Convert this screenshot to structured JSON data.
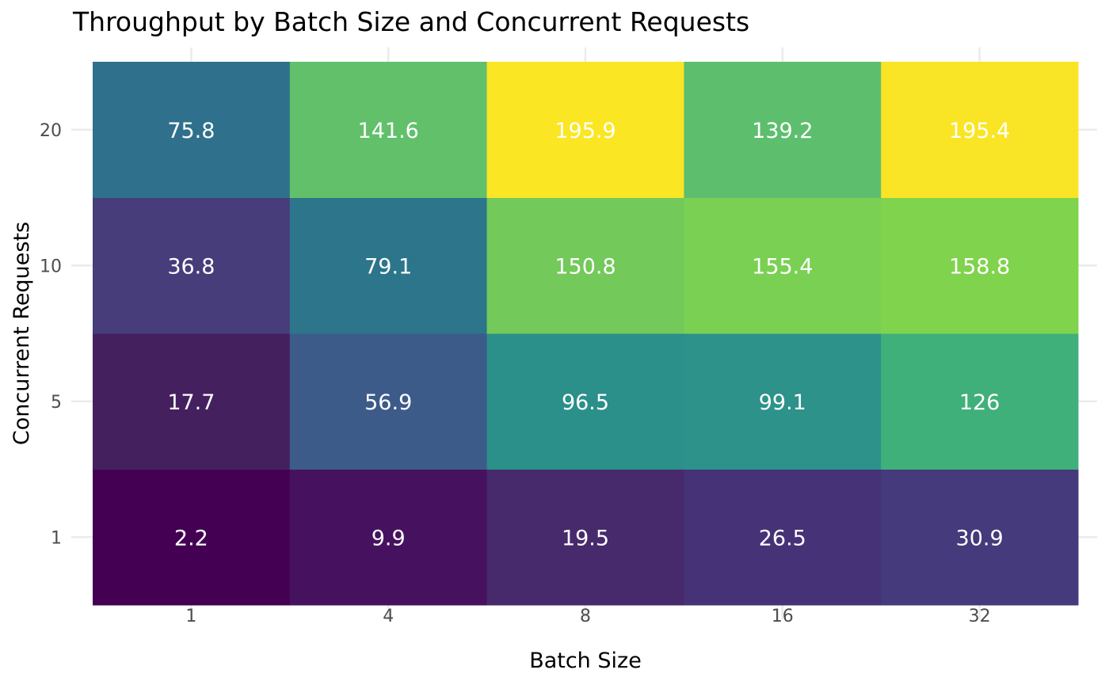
{
  "chart_data": {
    "type": "heatmap",
    "title": "Throughput by Batch Size and Concurrent Requests",
    "xlabel": "Batch Size",
    "ylabel": "Concurrent Requests",
    "x_categories": [
      "1",
      "4",
      "8",
      "16",
      "32"
    ],
    "y_categories": [
      "1",
      "5",
      "10",
      "20"
    ],
    "values": [
      [
        2.2,
        9.9,
        19.5,
        26.5,
        30.9
      ],
      [
        17.7,
        56.9,
        96.5,
        99.1,
        126
      ],
      [
        36.8,
        79.1,
        150.8,
        155.4,
        158.8
      ],
      [
        75.8,
        141.6,
        195.9,
        139.2,
        195.4
      ]
    ],
    "value_range": [
      2.2,
      195.9
    ],
    "colormap": "viridis",
    "cell_colors": [
      [
        "#440154",
        "#46125f",
        "#472a6c",
        "#463276",
        "#453a7b"
      ],
      [
        "#45205f",
        "#3d5b89",
        "#2b8f8a",
        "#2c928a",
        "#40b07b"
      ],
      [
        "#463d7a",
        "#2c758b",
        "#73c95a",
        "#7ad052",
        "#80d34c"
      ],
      [
        "#2f718c",
        "#62c06b",
        "#fbe623",
        "#5dbf6e",
        "#f9e525"
      ]
    ],
    "label_color": "#ffffff",
    "grid": true,
    "legend": "none"
  }
}
